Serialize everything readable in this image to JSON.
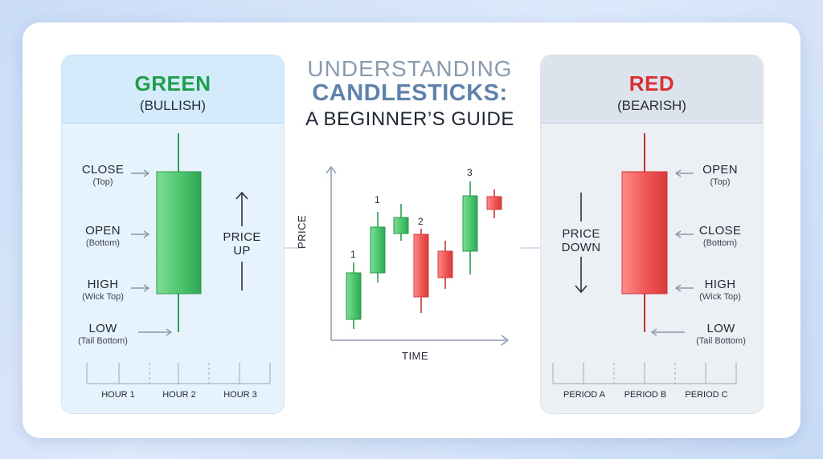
{
  "title": {
    "line1": "UNDERSTANDING",
    "line2": "CANDLESTICKS:",
    "line3": "A BEGINNER’S GUIDE"
  },
  "green_panel": {
    "heading": "GREEN",
    "subheading": "(BULLISH)",
    "labels": [
      {
        "title": "CLOSE",
        "sub": "(Top)"
      },
      {
        "title": "OPEN",
        "sub": "(Bottom)"
      },
      {
        "title": "HIGH",
        "sub": "(Wick Top)"
      },
      {
        "title": "LOW",
        "sub": "(Tail Bottom)"
      }
    ],
    "direction": {
      "line1": "PRICE",
      "line2": "UP"
    },
    "timeline": [
      "HOUR 1",
      "HOUR 2",
      "HOUR 3"
    ]
  },
  "red_panel": {
    "heading": "RED",
    "subheading": "(BEARISH)",
    "labels": [
      {
        "title": "OPEN",
        "sub": "(Top)"
      },
      {
        "title": "CLOSE",
        "sub": "(Bottom)"
      },
      {
        "title": "HIGH",
        "sub": "(Wick Top)"
      },
      {
        "title": "LOW",
        "sub": "(Tail Bottom)"
      }
    ],
    "direction": {
      "line1": "PRICE",
      "line2": "DOWN"
    },
    "timeline": [
      "PERIOD A",
      "PERIOD B",
      "PERIOD C"
    ]
  },
  "mini_chart": {
    "xlabel": "TIME",
    "ylabel": "PRICE",
    "candles": [
      {
        "color": "green",
        "label": "1"
      },
      {
        "color": "green",
        "label": "1"
      },
      {
        "color": "green",
        "label": ""
      },
      {
        "color": "red",
        "label": "2"
      },
      {
        "color": "red",
        "label": ""
      },
      {
        "color": "green",
        "label": "3"
      },
      {
        "color": "red",
        "label": ""
      }
    ]
  },
  "colors": {
    "bull": "#3dbb62",
    "bear": "#e84c4c",
    "bull_light": "#7fdc95",
    "bear_light": "#ff8484"
  }
}
